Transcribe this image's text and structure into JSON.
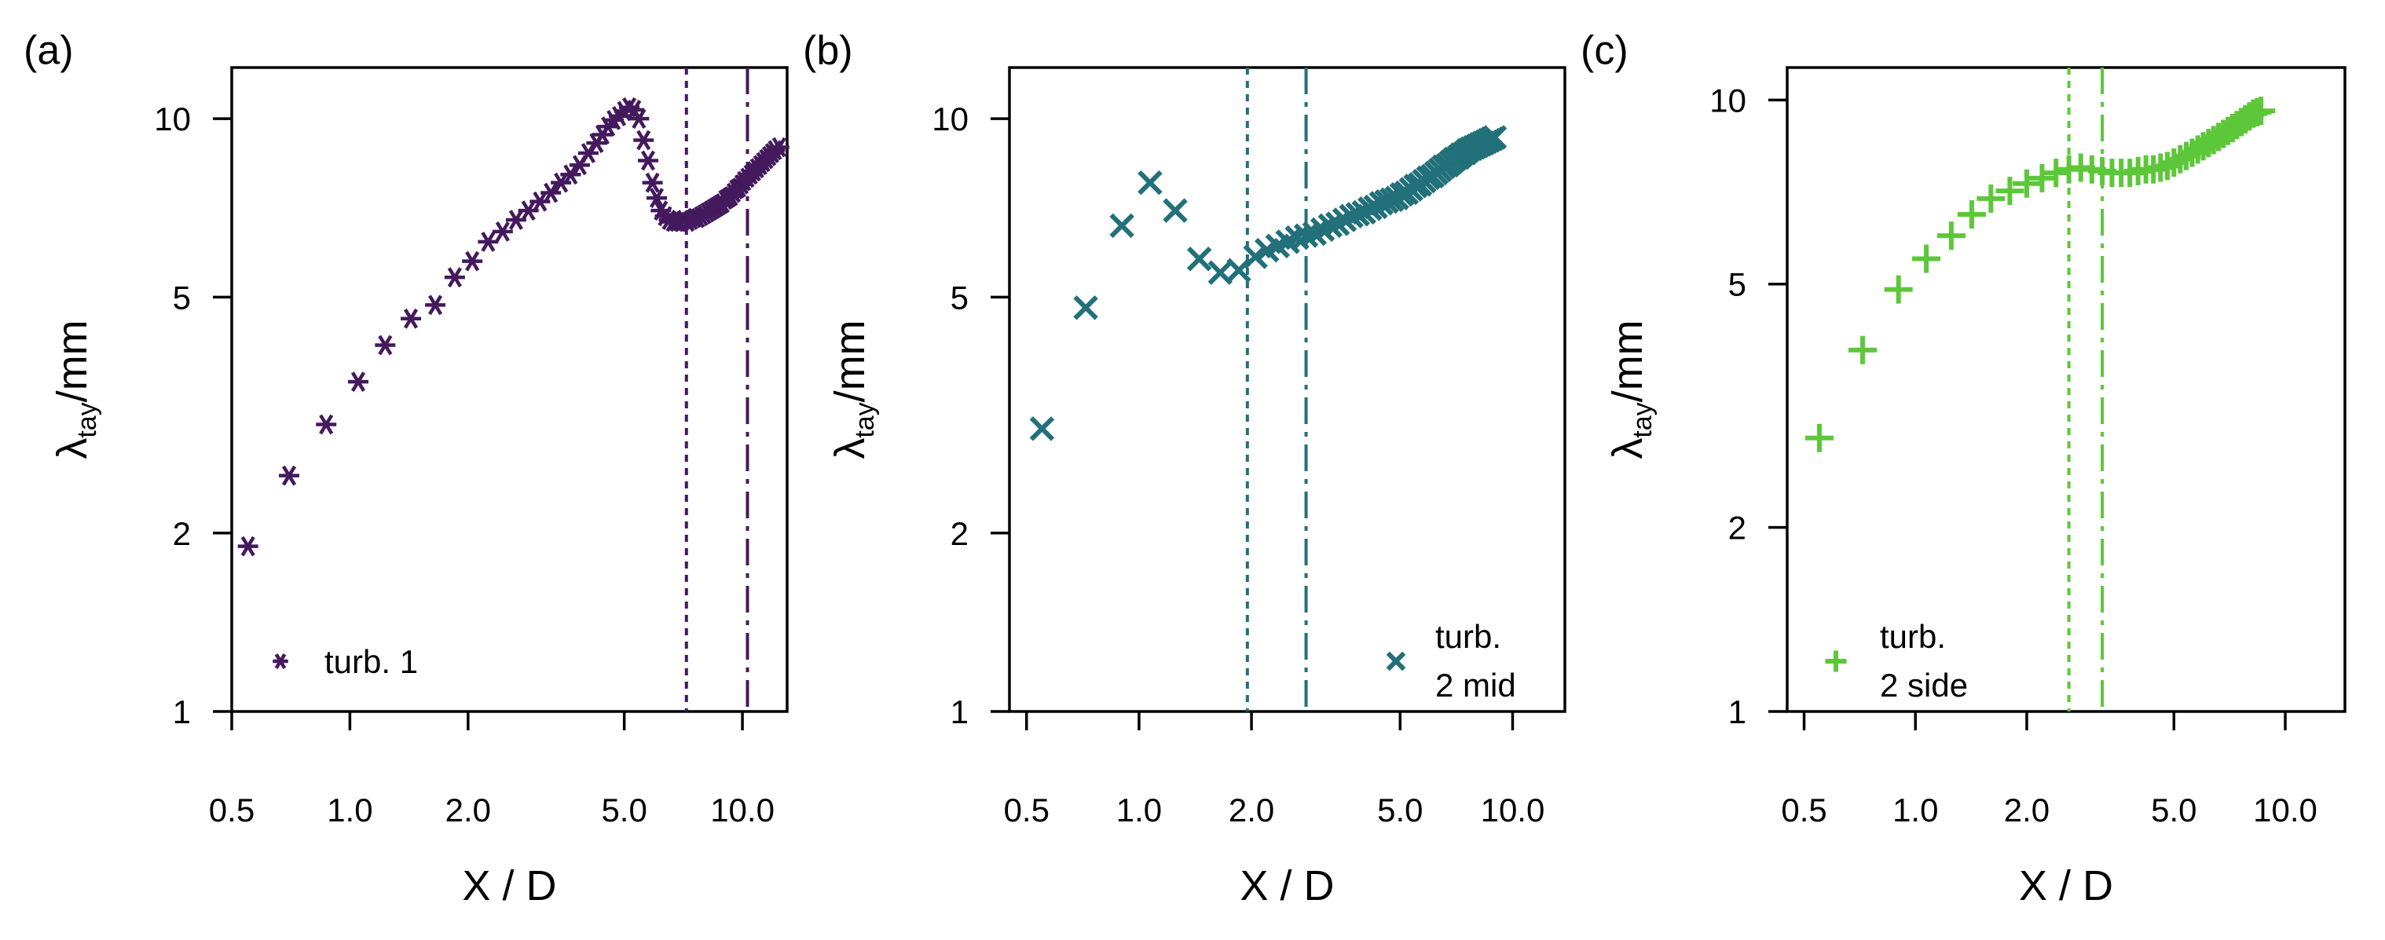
{
  "chart_data": [
    {
      "type": "scatter",
      "panel_label": "(a)",
      "xlabel": "X / D",
      "ylabel_symbol": "λ",
      "ylabel_sub": "tay",
      "ylabel_unit": "/mm",
      "xscale": "log",
      "yscale": "log",
      "xlim": [
        0.5,
        13.0
      ],
      "ylim": [
        1,
        12.2
      ],
      "xticks": [
        0.5,
        1.0,
        2.0,
        5.0,
        10.0
      ],
      "xtick_labels": [
        "0.5",
        "1.0",
        "2.0",
        "5.0",
        "10.0"
      ],
      "yticks": [
        1,
        2,
        5,
        10
      ],
      "ytick_labels": [
        "1",
        "2",
        "5",
        "10"
      ],
      "color": "#44195e",
      "marker": "asterisk",
      "legend": {
        "label_lines": [
          "turb. 1"
        ],
        "position": "bottom-left"
      },
      "vlines": [
        {
          "x": 7.2,
          "style": "dotted"
        },
        {
          "x": 10.3,
          "style": "dashdot"
        }
      ],
      "x": [
        0.55,
        0.7,
        0.87,
        1.05,
        1.23,
        1.43,
        1.65,
        1.85,
        2.05,
        2.25,
        2.45,
        2.65,
        2.85,
        3.05,
        3.25,
        3.45,
        3.65,
        3.85,
        4.05,
        4.25,
        4.4,
        4.55,
        4.7,
        4.85,
        5.0,
        5.15,
        5.3,
        5.45,
        5.6,
        5.75,
        5.9,
        6.05,
        6.2,
        6.35,
        6.5,
        6.65,
        6.8,
        6.95,
        7.1,
        7.25,
        7.4,
        7.55,
        7.7,
        7.85,
        8.0,
        8.15,
        8.3,
        8.45,
        8.6,
        8.75,
        8.9,
        9.05,
        9.2,
        9.35,
        9.5,
        9.65,
        9.8,
        9.95,
        10.1,
        10.3,
        10.5,
        10.7,
        10.9,
        11.1,
        11.3,
        11.5,
        11.7,
        11.9,
        12.1,
        12.4
      ],
      "y": [
        1.9,
        2.5,
        3.05,
        3.6,
        4.15,
        4.6,
        4.85,
        5.4,
        5.75,
        6.2,
        6.45,
        6.75,
        7.0,
        7.25,
        7.5,
        7.8,
        8.05,
        8.35,
        8.75,
        9.1,
        9.4,
        9.7,
        9.95,
        10.1,
        10.3,
        10.45,
        10.35,
        10.0,
        9.2,
        8.5,
        7.8,
        7.35,
        7.0,
        6.85,
        6.75,
        6.7,
        6.7,
        6.7,
        6.75,
        6.7,
        6.75,
        6.8,
        6.8,
        6.85,
        6.9,
        6.95,
        7.0,
        7.05,
        7.1,
        7.15,
        7.2,
        7.3,
        7.35,
        7.4,
        7.5,
        7.6,
        7.65,
        7.75,
        7.85,
        7.95,
        8.05,
        8.15,
        8.25,
        8.35,
        8.45,
        8.55,
        8.65,
        8.75,
        8.85,
        8.95
      ]
    },
    {
      "type": "scatter",
      "panel_label": "(b)",
      "xlabel": "X / D",
      "ylabel_symbol": "λ",
      "ylabel_sub": "tay",
      "ylabel_unit": "/mm",
      "xscale": "log",
      "yscale": "log",
      "xlim": [
        0.45,
        13.8
      ],
      "ylim": [
        1,
        12.2
      ],
      "xticks": [
        0.5,
        1.0,
        2.0,
        5.0,
        10.0
      ],
      "xtick_labels": [
        "0.5",
        "1.0",
        "2.0",
        "5.0",
        "10.0"
      ],
      "yticks": [
        1,
        2,
        5,
        10
      ],
      "ytick_labels": [
        "1",
        "2",
        "5",
        "10"
      ],
      "color": "#22707a",
      "marker": "x",
      "legend": {
        "label_lines": [
          "turb.",
          "2 mid"
        ],
        "position": "bottom-right"
      },
      "vlines": [
        {
          "x": 1.95,
          "style": "dotted"
        },
        {
          "x": 2.8,
          "style": "dashdot"
        }
      ],
      "x": [
        0.55,
        0.72,
        0.9,
        1.07,
        1.25,
        1.45,
        1.65,
        1.85,
        2.05,
        2.2,
        2.35,
        2.5,
        2.65,
        2.8,
        2.95,
        3.1,
        3.25,
        3.4,
        3.55,
        3.7,
        3.85,
        4.0,
        4.15,
        4.3,
        4.45,
        4.6,
        4.75,
        4.9,
        5.05,
        5.2,
        5.35,
        5.5,
        5.65,
        5.8,
        5.95,
        6.1,
        6.25,
        6.4,
        6.55,
        6.7,
        6.85,
        7.0,
        7.15,
        7.3,
        7.45,
        7.6,
        7.75,
        7.9,
        8.05,
        8.2,
        8.35,
        8.5,
        8.65,
        8.8,
        8.95
      ],
      "y": [
        3.0,
        4.8,
        6.6,
        7.8,
        7.0,
        5.8,
        5.5,
        5.55,
        5.85,
        6.0,
        6.1,
        6.2,
        6.3,
        6.35,
        6.4,
        6.5,
        6.6,
        6.65,
        6.75,
        6.85,
        6.9,
        6.95,
        7.05,
        7.1,
        7.2,
        7.25,
        7.3,
        7.35,
        7.45,
        7.5,
        7.6,
        7.7,
        7.75,
        7.85,
        7.95,
        8.0,
        8.1,
        8.2,
        8.3,
        8.35,
        8.45,
        8.55,
        8.6,
        8.7,
        8.75,
        8.85,
        8.9,
        8.95,
        9.0,
        9.05,
        9.1,
        9.15,
        9.2,
        9.25,
        9.3
      ]
    },
    {
      "type": "scatter",
      "panel_label": "(c)",
      "xlabel": "X / D",
      "ylabel_symbol": "λ",
      "ylabel_sub": "tay",
      "ylabel_unit": "/mm",
      "xscale": "log",
      "yscale": "log",
      "xlim": [
        0.45,
        14.5
      ],
      "ylim": [
        1,
        11.3
      ],
      "xticks": [
        0.5,
        1.0,
        2.0,
        5.0,
        10.0
      ],
      "xtick_labels": [
        "0.5",
        "1.0",
        "2.0",
        "5.0",
        "10.0"
      ],
      "yticks": [
        1,
        2,
        5,
        10
      ],
      "ytick_labels": [
        "1",
        "2",
        "5",
        "10"
      ],
      "color": "#5dc73a",
      "marker": "plus",
      "legend": {
        "label_lines": [
          "turb.",
          "2 side"
        ],
        "position": "bottom-left"
      },
      "vlines": [
        {
          "x": 2.6,
          "style": "dotted"
        },
        {
          "x": 3.2,
          "style": "dashdot"
        }
      ],
      "x": [
        0.55,
        0.72,
        0.9,
        1.07,
        1.25,
        1.42,
        1.6,
        1.8,
        2.0,
        2.2,
        2.4,
        2.6,
        2.8,
        3.0,
        3.2,
        3.4,
        3.6,
        3.8,
        4.0,
        4.2,
        4.4,
        4.6,
        4.8,
        5.0,
        5.2,
        5.4,
        5.6,
        5.8,
        6.0,
        6.2,
        6.4,
        6.6,
        6.8,
        7.0,
        7.2,
        7.4,
        7.6,
        7.8,
        8.0,
        8.2,
        8.4,
        8.6
      ],
      "y": [
        2.8,
        3.9,
        4.9,
        5.5,
        6.0,
        6.5,
        6.9,
        7.1,
        7.3,
        7.45,
        7.6,
        7.7,
        7.75,
        7.7,
        7.65,
        7.6,
        7.6,
        7.6,
        7.65,
        7.7,
        7.7,
        7.75,
        7.8,
        7.9,
        8.0,
        8.1,
        8.2,
        8.3,
        8.4,
        8.5,
        8.6,
        8.7,
        8.8,
        8.9,
        9.0,
        9.1,
        9.2,
        9.3,
        9.4,
        9.5,
        9.55,
        9.6
      ]
    }
  ]
}
